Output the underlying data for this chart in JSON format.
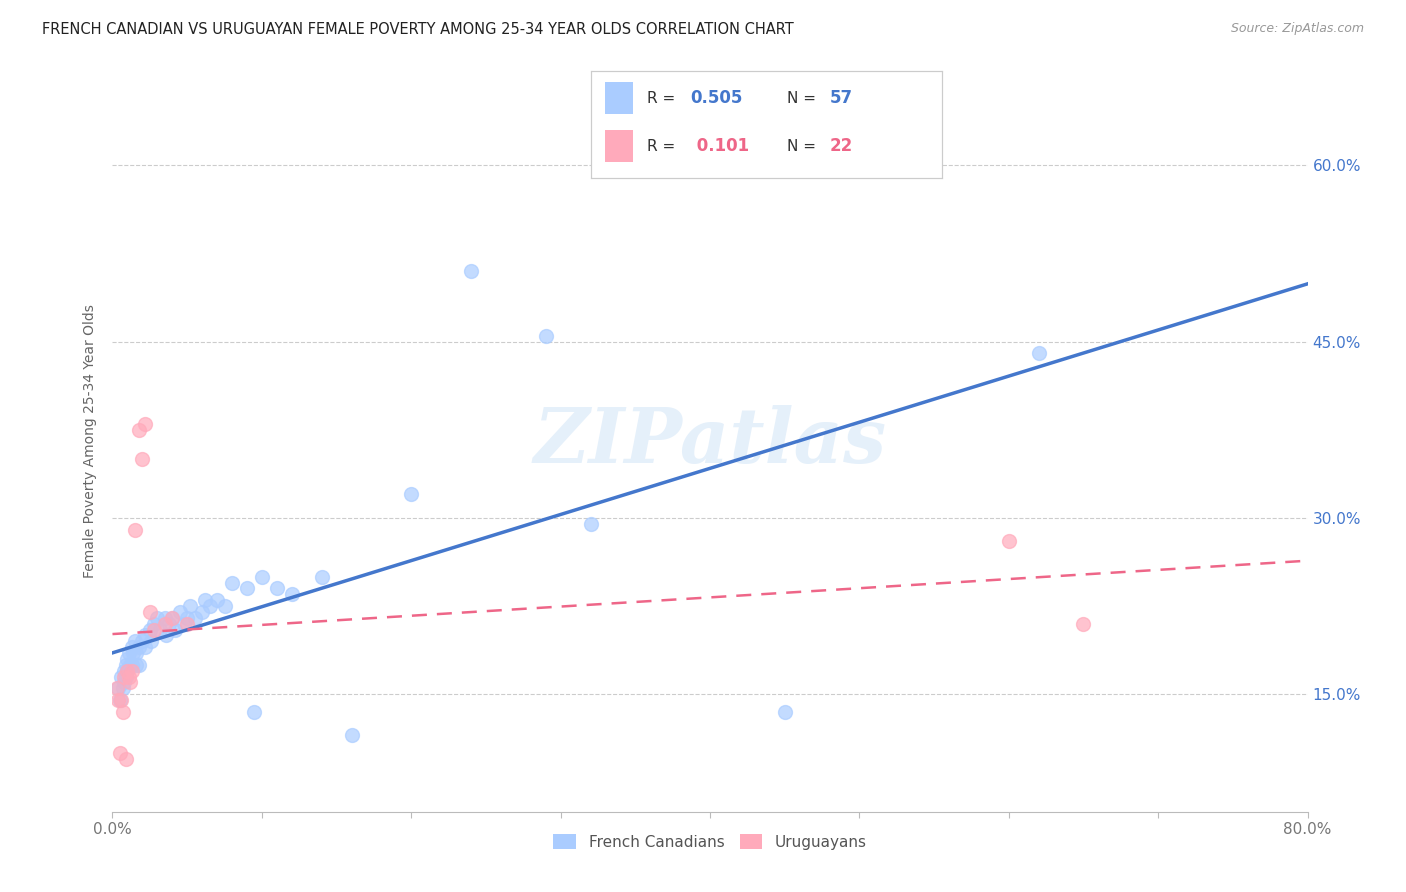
{
  "title": "FRENCH CANADIAN VS URUGUAYAN FEMALE POVERTY AMONG 25-34 YEAR OLDS CORRELATION CHART",
  "source": "Source: ZipAtlas.com",
  "ylabel": "Female Poverty Among 25-34 Year Olds",
  "xlim": [
    0.0,
    0.8
  ],
  "ylim": [
    0.05,
    0.68
  ],
  "ytick_positions": [
    0.15,
    0.3,
    0.45,
    0.6
  ],
  "ytick_labels": [
    "15.0%",
    "30.0%",
    "45.0%",
    "60.0%"
  ],
  "grid_color": "#cccccc",
  "background_color": "#ffffff",
  "french_canadian_color": "#aaccff",
  "uruguayan_color": "#ffaabb",
  "french_canadian_line_color": "#4477cc",
  "uruguayan_line_color": "#ee6688",
  "watermark": "ZIPatlas",
  "french_canadians_x": [
    0.004,
    0.005,
    0.006,
    0.007,
    0.008,
    0.008,
    0.009,
    0.009,
    0.01,
    0.01,
    0.011,
    0.012,
    0.013,
    0.013,
    0.014,
    0.015,
    0.016,
    0.016,
    0.018,
    0.018,
    0.02,
    0.022,
    0.022,
    0.025,
    0.026,
    0.028,
    0.03,
    0.032,
    0.035,
    0.036,
    0.038,
    0.04,
    0.042,
    0.045,
    0.048,
    0.05,
    0.052,
    0.055,
    0.06,
    0.062,
    0.065,
    0.07,
    0.075,
    0.08,
    0.09,
    0.095,
    0.1,
    0.11,
    0.12,
    0.14,
    0.16,
    0.2,
    0.24,
    0.29,
    0.32,
    0.45,
    0.62
  ],
  "french_canadians_y": [
    0.155,
    0.145,
    0.165,
    0.155,
    0.17,
    0.16,
    0.175,
    0.165,
    0.18,
    0.17,
    0.185,
    0.175,
    0.19,
    0.175,
    0.185,
    0.195,
    0.185,
    0.175,
    0.19,
    0.175,
    0.195,
    0.2,
    0.19,
    0.205,
    0.195,
    0.21,
    0.215,
    0.205,
    0.215,
    0.2,
    0.21,
    0.215,
    0.205,
    0.22,
    0.21,
    0.215,
    0.225,
    0.215,
    0.22,
    0.23,
    0.225,
    0.23,
    0.225,
    0.245,
    0.24,
    0.135,
    0.25,
    0.24,
    0.235,
    0.25,
    0.115,
    0.32,
    0.51,
    0.455,
    0.295,
    0.135,
    0.44
  ],
  "uruguayans_x": [
    0.003,
    0.004,
    0.005,
    0.006,
    0.007,
    0.008,
    0.009,
    0.01,
    0.011,
    0.012,
    0.013,
    0.015,
    0.018,
    0.02,
    0.022,
    0.025,
    0.028,
    0.035,
    0.04,
    0.05,
    0.6,
    0.65
  ],
  "uruguayans_y": [
    0.155,
    0.145,
    0.1,
    0.145,
    0.135,
    0.165,
    0.095,
    0.17,
    0.165,
    0.16,
    0.17,
    0.29,
    0.375,
    0.35,
    0.38,
    0.22,
    0.205,
    0.21,
    0.215,
    0.21,
    0.28,
    0.21
  ]
}
